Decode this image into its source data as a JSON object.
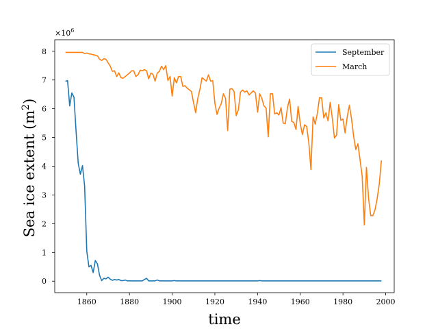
{
  "chart_data": {
    "type": "line",
    "xlabel": "time",
    "ylabel_main": "Sea ice extent (m",
    "ylabel_sup": "2",
    "ylabel_end": ")",
    "offset_text_base": "×10",
    "offset_text_exp": "6",
    "xlim": [
      1845,
      2004
    ],
    "ylim": [
      -0.4,
      8.4
    ],
    "scale": 1000000,
    "xticks": [
      1860,
      1880,
      1900,
      1920,
      1940,
      1960,
      1980,
      2000
    ],
    "yticks": [
      0,
      1,
      2,
      3,
      4,
      5,
      6,
      7,
      8
    ],
    "legend_position": "top-right",
    "series": [
      {
        "name": "September",
        "color": "#1f77b4",
        "x": [
          1850,
          1851,
          1852,
          1853,
          1854,
          1855,
          1856,
          1857,
          1858,
          1859,
          1860,
          1861,
          1862,
          1863,
          1864,
          1865,
          1866,
          1867,
          1868,
          1869,
          1870,
          1871,
          1872,
          1873,
          1874,
          1875,
          1876,
          1877,
          1878,
          1879,
          1880,
          1881,
          1882,
          1883,
          1884,
          1885,
          1886,
          1887,
          1888,
          1889,
          1890,
          1891,
          1892,
          1893,
          1894,
          1895,
          1896,
          1897,
          1898,
          1899,
          1900,
          1901,
          1902,
          1903,
          1904,
          1905,
          1910,
          1920,
          1930,
          1940,
          1941,
          1942,
          1943,
          1950,
          1960,
          1970,
          1980,
          1990,
          1998
        ],
        "y": [
          6.95,
          6.98,
          6.1,
          6.55,
          6.4,
          5.2,
          4.1,
          3.72,
          4.02,
          3.3,
          1.05,
          0.5,
          0.55,
          0.3,
          0.72,
          0.6,
          0.2,
          0.02,
          0.1,
          0.08,
          0.14,
          0.07,
          0.03,
          0.06,
          0.04,
          0.06,
          0.02,
          0.02,
          0.04,
          0.01,
          0.01,
          0.01,
          0.01,
          0.01,
          0.01,
          0.01,
          0.01,
          0.06,
          0.1,
          0.01,
          0.01,
          0.01,
          0.01,
          0.04,
          0.01,
          0.01,
          0.01,
          0.01,
          0.01,
          0.01,
          0.01,
          0.02,
          0.01,
          0.01,
          0.01,
          0.01,
          0.01,
          0.01,
          0.01,
          0.01,
          0.02,
          0.01,
          0.01,
          0.01,
          0.01,
          0.01,
          0.01,
          0.01,
          0.01
        ]
      },
      {
        "name": "March",
        "color": "#ff7f0e",
        "x": [
          1850,
          1851,
          1852,
          1853,
          1854,
          1855,
          1856,
          1857,
          1858,
          1859,
          1860,
          1861,
          1862,
          1863,
          1864,
          1865,
          1866,
          1867,
          1868,
          1869,
          1870,
          1871,
          1872,
          1873,
          1874,
          1875,
          1876,
          1877,
          1878,
          1879,
          1880,
          1881,
          1882,
          1883,
          1884,
          1885,
          1886,
          1887,
          1888,
          1889,
          1890,
          1891,
          1892,
          1893,
          1894,
          1895,
          1896,
          1897,
          1898,
          1899,
          1900,
          1901,
          1902,
          1903,
          1904,
          1905,
          1906,
          1907,
          1908,
          1909,
          1910,
          1911,
          1912,
          1913,
          1914,
          1915,
          1916,
          1917,
          1918,
          1919,
          1920,
          1921,
          1922,
          1923,
          1924,
          1925,
          1926,
          1927,
          1928,
          1929,
          1930,
          1931,
          1932,
          1933,
          1934,
          1935,
          1936,
          1937,
          1938,
          1939,
          1940,
          1941,
          1942,
          1943,
          1944,
          1945,
          1946,
          1947,
          1948,
          1949,
          1950,
          1951,
          1952,
          1953,
          1954,
          1955,
          1956,
          1957,
          1958,
          1959,
          1960,
          1961,
          1962,
          1963,
          1964,
          1965,
          1966,
          1967,
          1968,
          1969,
          1970,
          1971,
          1972,
          1973,
          1974,
          1975,
          1976,
          1977,
          1978,
          1979,
          1980,
          1981,
          1982,
          1983,
          1984,
          1985,
          1986,
          1987,
          1988,
          1989,
          1990,
          1991,
          1992,
          1993,
          1994,
          1995,
          1996,
          1997,
          1998
        ],
        "y": [
          7.96,
          7.96,
          7.96,
          7.96,
          7.96,
          7.96,
          7.96,
          7.96,
          7.96,
          7.92,
          7.94,
          7.91,
          7.9,
          7.88,
          7.86,
          7.84,
          7.72,
          7.68,
          7.74,
          7.72,
          7.6,
          7.48,
          7.3,
          7.32,
          7.12,
          7.25,
          7.08,
          7.06,
          7.12,
          7.18,
          7.24,
          7.32,
          7.32,
          7.12,
          7.18,
          7.34,
          7.32,
          7.36,
          7.32,
          7.04,
          7.24,
          7.2,
          6.96,
          7.24,
          7.3,
          7.48,
          7.36,
          7.5,
          6.98,
          7.12,
          6.44,
          7.08,
          6.9,
          7.12,
          7.12,
          6.78,
          6.8,
          6.72,
          6.66,
          6.6,
          6.22,
          5.86,
          6.36,
          6.68,
          7.08,
          7.02,
          6.96,
          7.18,
          6.96,
          6.98,
          6.2,
          5.8,
          6.02,
          6.18,
          6.52,
          6.36,
          5.24,
          6.68,
          6.7,
          6.6,
          5.76,
          5.96,
          6.58,
          6.65,
          6.58,
          6.62,
          6.48,
          6.55,
          6.62,
          6.55,
          5.88,
          6.52,
          6.36,
          6.1,
          6.02,
          5.02,
          6.52,
          6.52,
          5.82,
          5.86,
          5.78,
          6.04,
          5.5,
          5.48,
          6.04,
          6.34,
          5.56,
          5.52,
          5.28,
          6.08,
          5.48,
          5.1,
          5.44,
          5.38,
          4.82,
          3.88,
          5.72,
          5.46,
          5.84,
          6.38,
          6.38,
          5.68,
          5.86,
          5.58,
          6.22,
          5.68,
          4.98,
          5.08,
          6.14,
          5.6,
          5.64,
          5.16,
          5.72,
          6.12,
          5.66,
          5.04,
          4.58,
          4.78,
          4.22,
          3.66,
          1.96,
          3.96,
          2.88,
          2.28,
          2.28,
          2.48,
          2.86,
          3.38,
          4.2
        ]
      }
    ]
  }
}
